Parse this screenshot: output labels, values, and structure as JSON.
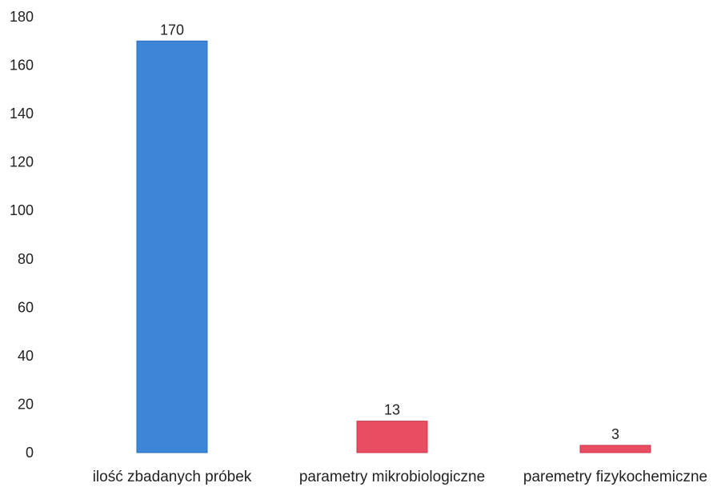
{
  "chart_data": {
    "type": "bar",
    "categories": [
      "ilość zbadanych próbek",
      "parametry mikrobiologiczne",
      "paremetry fizykochemiczne"
    ],
    "values": [
      170,
      13,
      3
    ],
    "data_labels": [
      "170",
      "13",
      "3"
    ],
    "bar_colors": [
      "#3d85d6",
      "#e84d62",
      "#e84d62"
    ],
    "y_ticks": [
      "0",
      "20",
      "40",
      "60",
      "80",
      "100",
      "120",
      "140",
      "160",
      "180"
    ],
    "ylim": [
      0,
      180
    ],
    "grid": false,
    "legend": "none",
    "title": "",
    "xlabel": "",
    "ylabel": ""
  }
}
